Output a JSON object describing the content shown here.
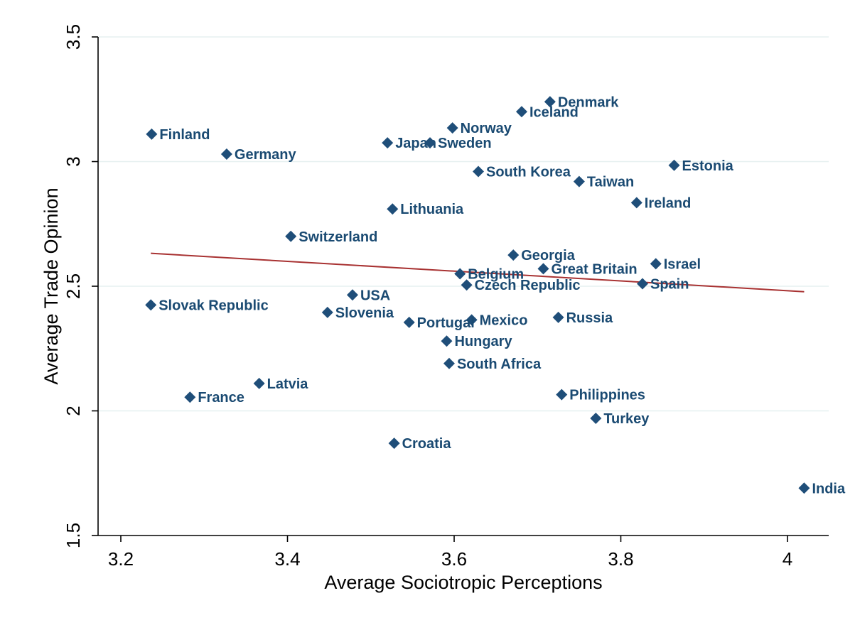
{
  "chart_data": {
    "type": "scatter",
    "title": "",
    "xlabel": "Average Sociotropic Perceptions",
    "ylabel": "Average Trade Opinion",
    "xlim": [
      3.19,
      4.025
    ],
    "ylim": [
      1.5,
      3.5
    ],
    "xticks": [
      3.2,
      3.4,
      3.6,
      3.8,
      4
    ],
    "xtick_labels": [
      "3.2",
      "3.4",
      "3.6",
      "3.8",
      "4"
    ],
    "yticks": [
      1.5,
      2,
      2.5,
      3,
      3.5
    ],
    "ytick_labels": [
      "1.5",
      "2",
      "2.5",
      "3",
      "3.5"
    ],
    "grid": true,
    "legend": "none",
    "colors": {
      "points": "#1f4e79",
      "labels": "#1a4a72",
      "fit_line": "#a83232",
      "grid": "#e6f0f0"
    },
    "points": [
      {
        "label": "Denmark",
        "x": 3.715,
        "y": 3.24
      },
      {
        "label": "Iceland",
        "x": 3.681,
        "y": 3.2
      },
      {
        "label": "Norway",
        "x": 3.598,
        "y": 3.135
      },
      {
        "label": "Finland",
        "x": 3.237,
        "y": 3.11
      },
      {
        "label": "Japan",
        "x": 3.52,
        "y": 3.075
      },
      {
        "label": "Sweden",
        "x": 3.571,
        "y": 3.075
      },
      {
        "label": "Germany",
        "x": 3.327,
        "y": 3.03
      },
      {
        "label": "Estonia",
        "x": 3.864,
        "y": 2.985
      },
      {
        "label": "South Korea",
        "x": 3.629,
        "y": 2.96
      },
      {
        "label": "Taiwan",
        "x": 3.75,
        "y": 2.92
      },
      {
        "label": "Ireland",
        "x": 3.819,
        "y": 2.835
      },
      {
        "label": "Lithuania",
        "x": 3.526,
        "y": 2.81
      },
      {
        "label": "Switzerland",
        "x": 3.404,
        "y": 2.7
      },
      {
        "label": "Georgia",
        "x": 3.671,
        "y": 2.625
      },
      {
        "label": "Israel",
        "x": 3.842,
        "y": 2.59
      },
      {
        "label": "Great Britain",
        "x": 3.707,
        "y": 2.57
      },
      {
        "label": "Belgium",
        "x": 3.607,
        "y": 2.55
      },
      {
        "label": "Czech Republic",
        "x": 3.615,
        "y": 2.505
      },
      {
        "label": "Spain",
        "x": 3.826,
        "y": 2.51
      },
      {
        "label": "USA",
        "x": 3.478,
        "y": 2.465
      },
      {
        "label": "Slovak Republic",
        "x": 3.236,
        "y": 2.425
      },
      {
        "label": "Slovenia",
        "x": 3.448,
        "y": 2.395
      },
      {
        "label": "Russia",
        "x": 3.725,
        "y": 2.375
      },
      {
        "label": "Mexico",
        "x": 3.621,
        "y": 2.365
      },
      {
        "label": "Portugal",
        "x": 3.546,
        "y": 2.355
      },
      {
        "label": "Hungary",
        "x": 3.591,
        "y": 2.28
      },
      {
        "label": "South Africa",
        "x": 3.594,
        "y": 2.19
      },
      {
        "label": "Latvia",
        "x": 3.366,
        "y": 2.11
      },
      {
        "label": "Philippines",
        "x": 3.729,
        "y": 2.065
      },
      {
        "label": "France",
        "x": 3.283,
        "y": 2.055
      },
      {
        "label": "Turkey",
        "x": 3.77,
        "y": 1.97
      },
      {
        "label": "Croatia",
        "x": 3.528,
        "y": 1.87
      },
      {
        "label": "India",
        "x": 4.02,
        "y": 1.69
      }
    ],
    "fit_line": {
      "x": [
        3.236,
        4.02
      ],
      "y": [
        2.632,
        2.478
      ]
    }
  }
}
